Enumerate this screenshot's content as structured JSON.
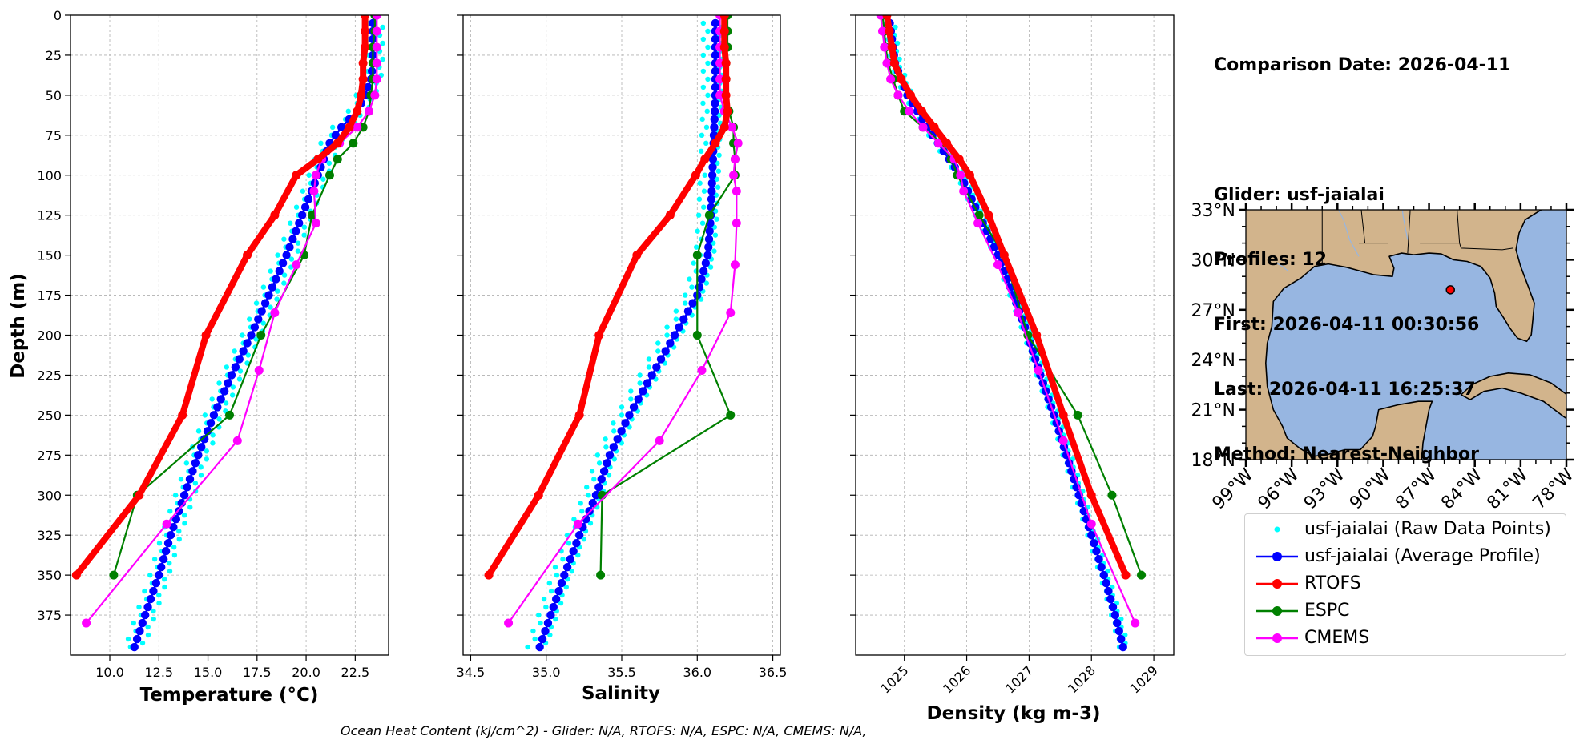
{
  "info": {
    "comparison_date": "Comparison Date: 2026-04-11",
    "glider": "Glider: usf-jaialai",
    "profiles": "Profiles: 12",
    "first": "First: 2026-04-11 00:30:56",
    "last": "Last: 2026-04-11 16:25:37",
    "method": "Method: Nearest-Neighbor"
  },
  "footer": "Ocean Heat Content (kJ/cm^2) - Glider: N/A,  RTOFS: N/A,  ESPC: N/A,  CMEMS: N/A,",
  "colors": {
    "raw": "#00ffff",
    "avg": "#0000ff",
    "rtofs": "#ff0000",
    "espc": "#008000",
    "cmems": "#ff00ff",
    "land": "#d2b48c",
    "ocean": "#97b6e1"
  },
  "legend": {
    "raw": "usf-jaialai (Raw Data Points)",
    "avg": "usf-jaialai (Average Profile)",
    "rtofs": "RTOFS",
    "espc": "ESPC",
    "cmems": "CMEMS"
  },
  "map": {
    "lat_labels": [
      "33°N",
      "30°N",
      "27°N",
      "24°N",
      "21°N",
      "18°N"
    ],
    "lon_labels": [
      "99°W",
      "96°W",
      "93°W",
      "90°W",
      "87°W",
      "84°W",
      "81°W",
      "78°W"
    ],
    "lon_range": [
      -99,
      -78
    ],
    "lat_range": [
      18,
      33
    ],
    "glider_position": {
      "lon": -85.6,
      "lat": 28.2
    }
  },
  "chart_data": [
    {
      "type": "line",
      "title": "",
      "xlabel": "Temperature (°C)",
      "ylabel": "Depth (m)",
      "xlim": [
        8.0,
        24.2
      ],
      "ylim": [
        400,
        0
      ],
      "grid": true,
      "xticks": [
        "10.0",
        "12.5",
        "15.0",
        "17.5",
        "20.0",
        "22.5"
      ],
      "yticks": [
        "0",
        "25",
        "50",
        "75",
        "100",
        "125",
        "150",
        "175",
        "200",
        "225",
        "250",
        "275",
        "300",
        "325",
        "350",
        "375"
      ],
      "series": [
        {
          "key": "rtofs",
          "name": "RTOFS",
          "depth": [
            0,
            10,
            20,
            30,
            40,
            50,
            60,
            70,
            80,
            90,
            100,
            125,
            150,
            200,
            250,
            300,
            350
          ],
          "values": [
            23.0,
            23.0,
            23.0,
            22.9,
            22.9,
            22.8,
            22.6,
            22.2,
            21.6,
            20.6,
            19.5,
            18.4,
            17.0,
            14.9,
            13.7,
            11.5,
            8.3
          ]
        },
        {
          "key": "espc",
          "name": "ESPC",
          "depth": [
            0,
            10,
            20,
            30,
            40,
            50,
            60,
            70,
            80,
            90,
            100,
            125,
            150,
            200,
            250,
            300,
            350
          ],
          "values": [
            23.5,
            23.5,
            23.4,
            23.4,
            23.4,
            23.3,
            23.2,
            22.9,
            22.4,
            21.6,
            21.2,
            20.3,
            19.9,
            17.7,
            16.1,
            11.4,
            10.2
          ]
        },
        {
          "key": "cmems",
          "name": "CMEMS",
          "depth": [
            0,
            10,
            20,
            30,
            40,
            50,
            60,
            70,
            80,
            90,
            100,
            110,
            130,
            156,
            186,
            222,
            266,
            318,
            380
          ],
          "values": [
            23.6,
            23.6,
            23.6,
            23.6,
            23.6,
            23.5,
            23.2,
            22.6,
            21.7,
            20.8,
            20.5,
            20.4,
            20.5,
            19.5,
            18.4,
            17.6,
            16.5,
            12.9,
            8.8
          ]
        }
      ],
      "avg_profile": {
        "depth_top": 5,
        "depth_bottom": 397,
        "step": 5,
        "depth": [
          0,
          30,
          40,
          50,
          60,
          70,
          80,
          100,
          125,
          150,
          175,
          200,
          225,
          250,
          275,
          300,
          325,
          350,
          375,
          397
        ],
        "values": [
          23.4,
          23.4,
          23.3,
          23.0,
          22.6,
          21.8,
          21.2,
          20.6,
          19.8,
          19.0,
          18.1,
          17.2,
          16.2,
          15.3,
          14.5,
          13.8,
          13.1,
          12.5,
          11.8,
          11.2
        ]
      },
      "raw_points": {
        "color_key": "raw",
        "offsets": [
          -0.45,
          0.35,
          -0.2,
          0.5
        ]
      }
    },
    {
      "type": "line",
      "title": "",
      "xlabel": "Salinity",
      "ylabel": "",
      "xlim": [
        34.45,
        36.55
      ],
      "ylim": [
        400,
        0
      ],
      "grid": true,
      "xticks": [
        "34.5",
        "35.0",
        "35.5",
        "36.0",
        "36.5"
      ],
      "yticks": [],
      "series": [
        {
          "key": "rtofs",
          "name": "RTOFS",
          "depth": [
            0,
            10,
            20,
            30,
            40,
            50,
            60,
            70,
            80,
            90,
            100,
            125,
            150,
            200,
            250,
            300,
            350
          ],
          "values": [
            36.18,
            36.18,
            36.18,
            36.19,
            36.19,
            36.19,
            36.2,
            36.18,
            36.12,
            36.05,
            35.99,
            35.82,
            35.6,
            35.35,
            35.22,
            34.95,
            34.62
          ]
        },
        {
          "key": "espc",
          "name": "ESPC",
          "depth": [
            0,
            10,
            20,
            30,
            40,
            50,
            60,
            70,
            80,
            90,
            100,
            125,
            150,
            200,
            250,
            300,
            350
          ],
          "values": [
            36.2,
            36.2,
            36.2,
            36.19,
            36.19,
            36.18,
            36.21,
            36.24,
            36.24,
            36.25,
            36.25,
            36.08,
            36.0,
            36.0,
            36.22,
            35.37,
            35.36
          ]
        },
        {
          "key": "cmems",
          "name": "CMEMS",
          "depth": [
            0,
            10,
            20,
            30,
            40,
            50,
            60,
            70,
            80,
            90,
            100,
            110,
            130,
            156,
            186,
            222,
            266,
            318,
            380
          ],
          "values": [
            36.15,
            36.15,
            36.15,
            36.15,
            36.15,
            36.15,
            36.18,
            36.23,
            36.27,
            36.25,
            36.24,
            36.26,
            36.26,
            36.25,
            36.22,
            36.03,
            35.75,
            35.21,
            34.75
          ]
        }
      ],
      "avg_profile": {
        "depth_top": 5,
        "depth_bottom": 397,
        "step": 5,
        "depth": [
          0,
          50,
          75,
          100,
          125,
          150,
          175,
          200,
          225,
          250,
          275,
          300,
          325,
          350,
          375,
          397
        ],
        "values": [
          36.12,
          36.12,
          36.11,
          36.1,
          36.09,
          36.07,
          36.0,
          35.85,
          35.7,
          35.55,
          35.42,
          35.33,
          35.22,
          35.12,
          35.03,
          34.95
        ]
      },
      "raw_points": {
        "color_key": "raw",
        "offsets": [
          -0.05,
          0.03,
          -0.08,
          0.04
        ]
      }
    },
    {
      "type": "line",
      "title": "",
      "xlabel": "Density (kg m-3)",
      "ylabel": "",
      "xlim": [
        1024.22,
        1029.32
      ],
      "ylim": [
        400,
        0
      ],
      "grid": true,
      "xticks": [
        "1025",
        "1026",
        "1027",
        "1028",
        "1029"
      ],
      "yticks": [],
      "series": [
        {
          "key": "rtofs",
          "name": "RTOFS",
          "depth": [
            0,
            10,
            20,
            30,
            40,
            50,
            60,
            70,
            80,
            90,
            100,
            125,
            150,
            200,
            250,
            300,
            350
          ],
          "values": [
            1024.72,
            1024.76,
            1024.8,
            1024.84,
            1024.95,
            1025.1,
            1025.28,
            1025.48,
            1025.68,
            1025.88,
            1026.05,
            1026.35,
            1026.6,
            1027.12,
            1027.55,
            1028.0,
            1028.55
          ]
        },
        {
          "key": "espc",
          "name": "ESPC",
          "depth": [
            0,
            10,
            20,
            30,
            40,
            50,
            60,
            70,
            80,
            90,
            100,
            125,
            150,
            200,
            250,
            300,
            350
          ],
          "values": [
            1024.65,
            1024.68,
            1024.7,
            1024.74,
            1024.82,
            1024.9,
            1025.0,
            1025.3,
            1025.6,
            1025.75,
            1025.85,
            1026.2,
            1026.6,
            1026.98,
            1027.78,
            1028.33,
            1028.8
          ]
        },
        {
          "key": "cmems",
          "name": "CMEMS",
          "depth": [
            0,
            10,
            20,
            30,
            40,
            50,
            60,
            70,
            80,
            90,
            100,
            110,
            130,
            156,
            186,
            222,
            266,
            318,
            380
          ],
          "values": [
            1024.62,
            1024.65,
            1024.68,
            1024.72,
            1024.78,
            1024.9,
            1025.08,
            1025.3,
            1025.55,
            1025.8,
            1025.9,
            1025.95,
            1026.18,
            1026.5,
            1026.82,
            1027.15,
            1027.55,
            1028.0,
            1028.7
          ]
        }
      ],
      "avg_profile": {
        "depth_top": 5,
        "depth_bottom": 397,
        "step": 5,
        "depth": [
          0,
          30,
          50,
          75,
          100,
          125,
          150,
          175,
          200,
          225,
          250,
          275,
          300,
          325,
          350,
          375,
          397
        ],
        "values": [
          1024.75,
          1024.85,
          1025.05,
          1025.45,
          1025.9,
          1026.2,
          1026.5,
          1026.75,
          1026.98,
          1027.18,
          1027.4,
          1027.6,
          1027.8,
          1028.0,
          1028.2,
          1028.38,
          1028.52
        ]
      },
      "raw_points": {
        "color_key": "raw",
        "offsets": [
          -0.03,
          0.05,
          -0.06,
          0.08
        ]
      }
    }
  ]
}
